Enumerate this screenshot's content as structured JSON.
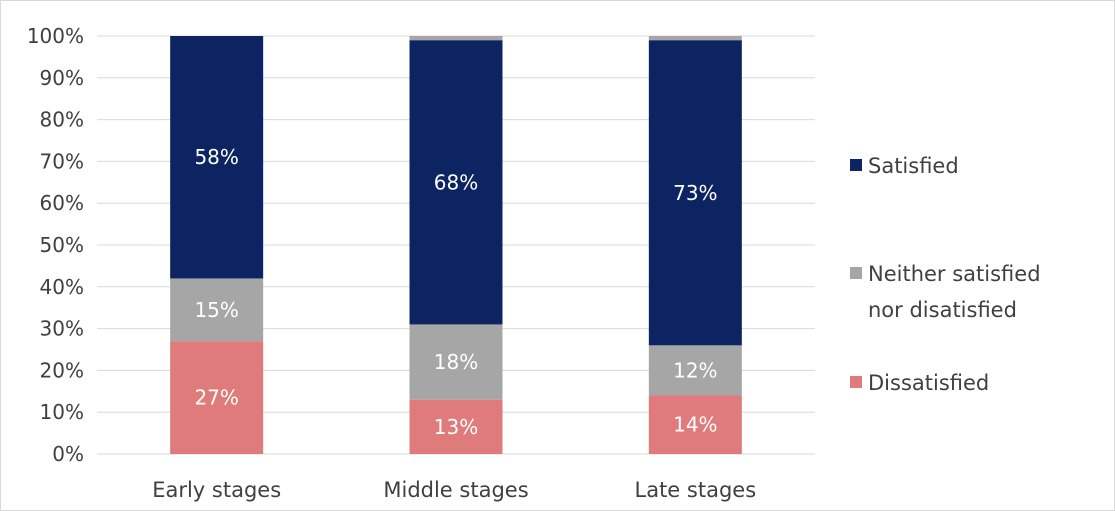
{
  "chart_data": {
    "type": "bar",
    "stacked": true,
    "percent": true,
    "categories": [
      "Early stages",
      "Middle stages",
      "Late stages"
    ],
    "series": [
      {
        "name": "Dissatisfied",
        "values": [
          27,
          13,
          14
        ],
        "labels": [
          "27%",
          "13%",
          "14%"
        ],
        "color": "#e07b7b",
        "label_color": "#ffffff"
      },
      {
        "name": "Neither satisfied nor disatisfied",
        "legend_lines": [
          "Neither satisfied",
          "nor disatisfied"
        ],
        "values": [
          15,
          18,
          12
        ],
        "labels": [
          "15%",
          "18%",
          "12%"
        ],
        "color": "#a6a6a6",
        "label_color": "#ffffff"
      },
      {
        "name": "Satisfied",
        "values": [
          58,
          68,
          73
        ],
        "labels": [
          "58%",
          "68%",
          "73%"
        ],
        "color": "#0c2461",
        "label_color": "#ffffff"
      }
    ],
    "y_ticks": [
      "0%",
      "10%",
      "20%",
      "30%",
      "40%",
      "50%",
      "60%",
      "70%",
      "80%",
      "90%",
      "100%"
    ],
    "ylim": [
      0,
      100
    ],
    "grid": true,
    "gridline_color": "#d9d9d9",
    "legend_position": "right",
    "legend_order": [
      "Satisfied",
      "Neither satisfied nor disatisfied",
      "Dissatisfied"
    ],
    "title": "",
    "xlabel": "",
    "ylabel": ""
  }
}
